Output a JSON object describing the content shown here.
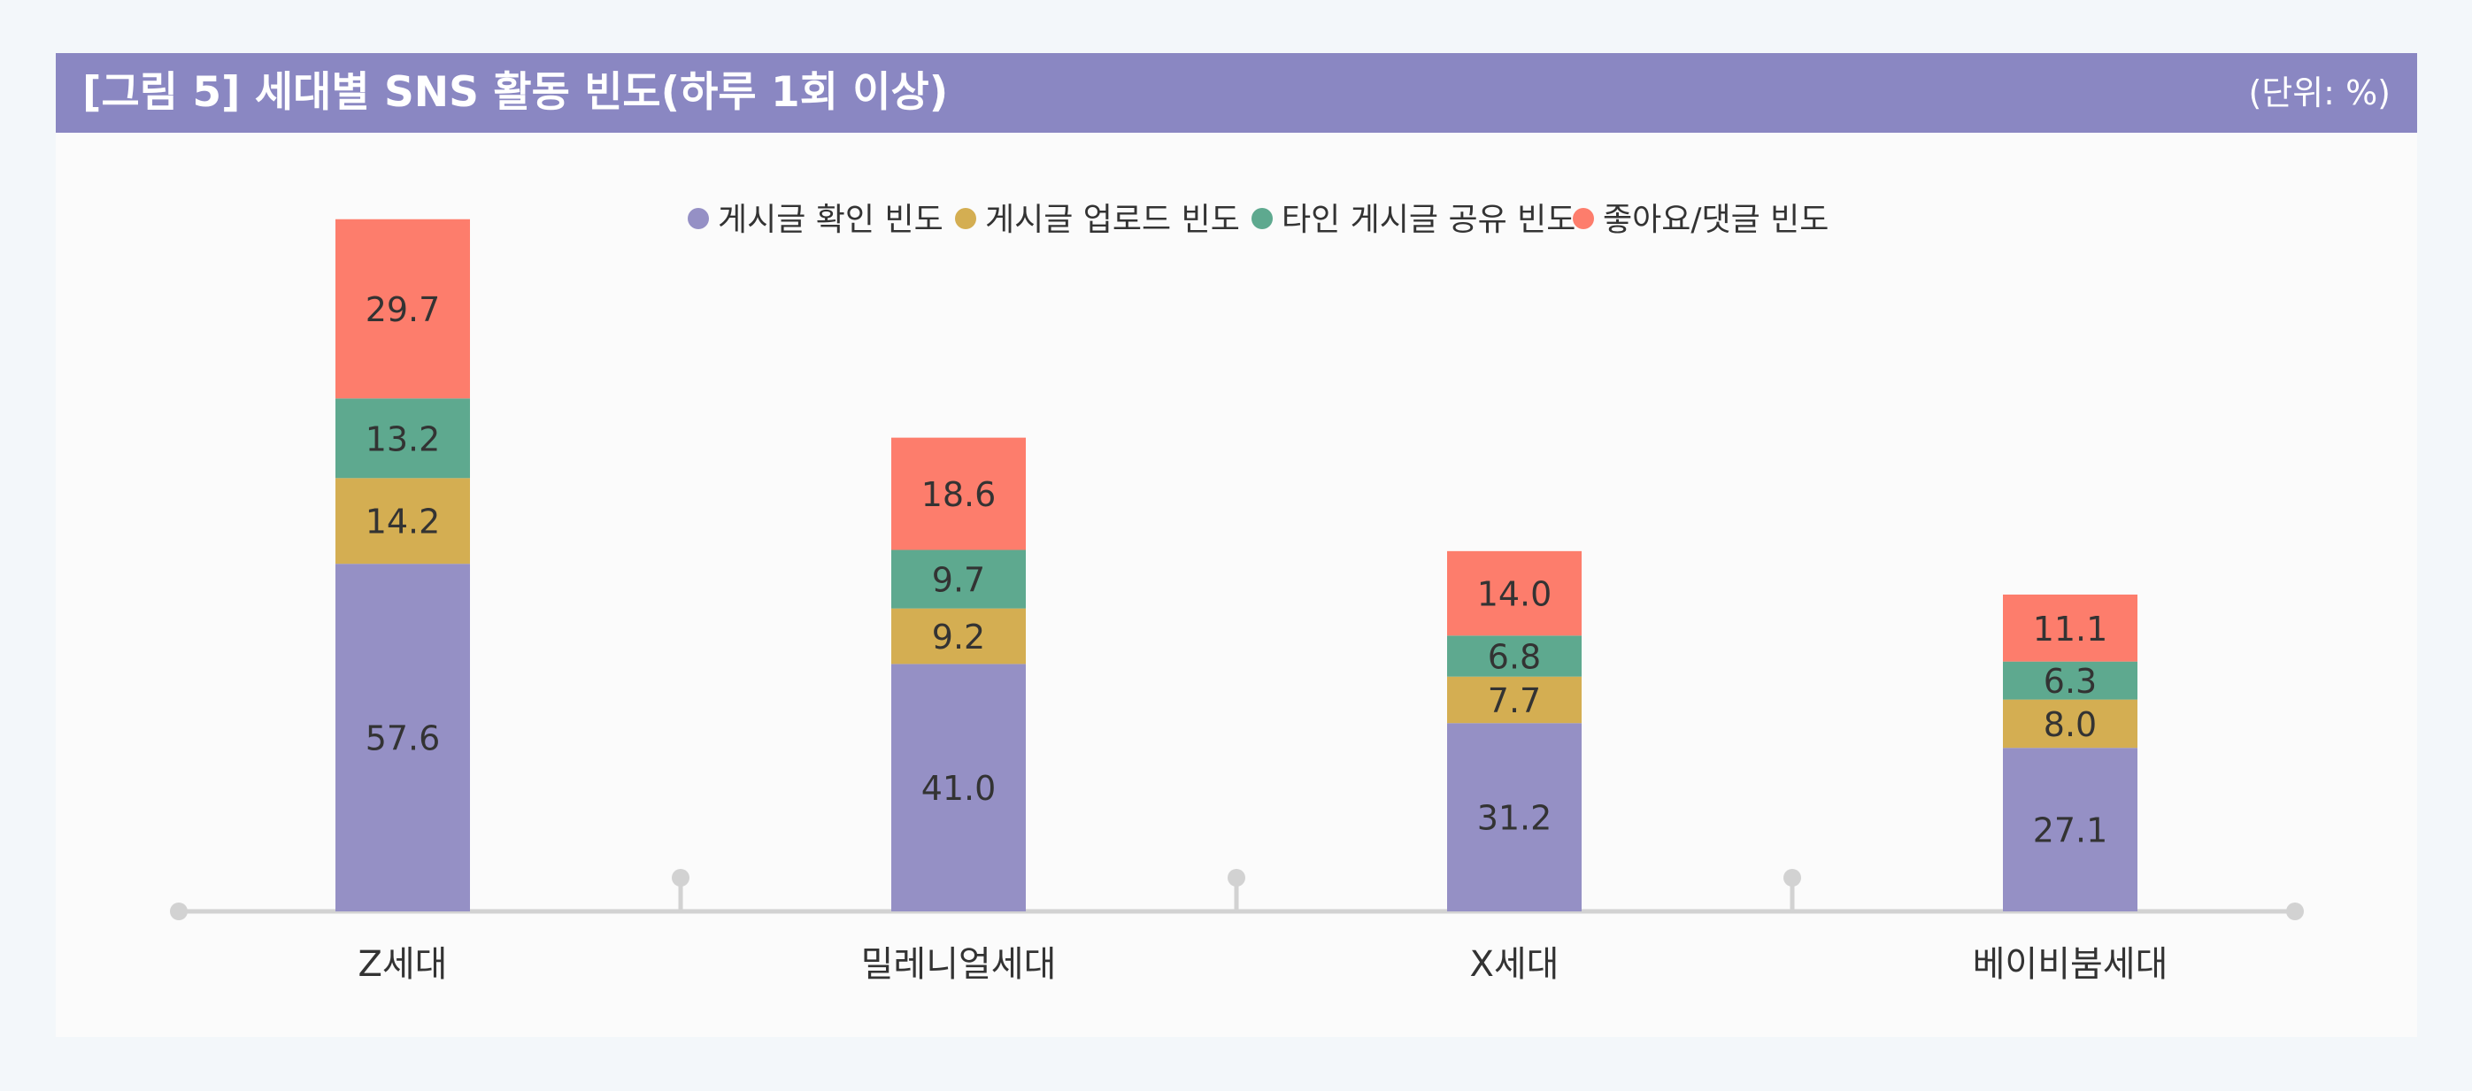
{
  "header": {
    "title": "[그림 5]  세대별 SNS 활동 빈도(하루 1회 이상)",
    "unit": "(단위: %)"
  },
  "chart_data": {
    "type": "bar",
    "stacked": true,
    "title": "[그림 5]  세대별 SNS 활동 빈도(하루 1회 이상)",
    "unit": "(단위: %)",
    "xlabel": "",
    "ylabel": "",
    "categories": [
      "Z세대",
      "밀레니얼세대",
      "X세대",
      "베이비붐세대"
    ],
    "series": [
      {
        "name": "게시글 확인 빈도",
        "color": "#9590c5",
        "values": [
          57.6,
          41.0,
          31.2,
          27.1
        ],
        "labels": [
          "57.6",
          "41.0",
          "31.2",
          "27.1"
        ]
      },
      {
        "name": "게시글 업로드 빈도",
        "color": "#d4ae52",
        "values": [
          14.2,
          9.2,
          7.7,
          8.0
        ],
        "labels": [
          "14.2",
          "9.2",
          "7.7",
          "8.0"
        ]
      },
      {
        "name": "타인 게시글 공유 빈도",
        "color": "#5ea98f",
        "values": [
          13.2,
          9.7,
          6.8,
          6.3
        ],
        "labels": [
          "13.2",
          "9.7",
          "6.8",
          "6.3"
        ]
      },
      {
        "name": "좋아요/댓글 빈도",
        "color": "#fd7d6c",
        "values": [
          29.7,
          18.6,
          14.0,
          11.1
        ],
        "labels": [
          "29.7",
          "18.6",
          "14.0",
          "11.1"
        ]
      }
    ],
    "ylim": [
      0,
      120
    ],
    "legend": "top-center",
    "grid": false
  }
}
